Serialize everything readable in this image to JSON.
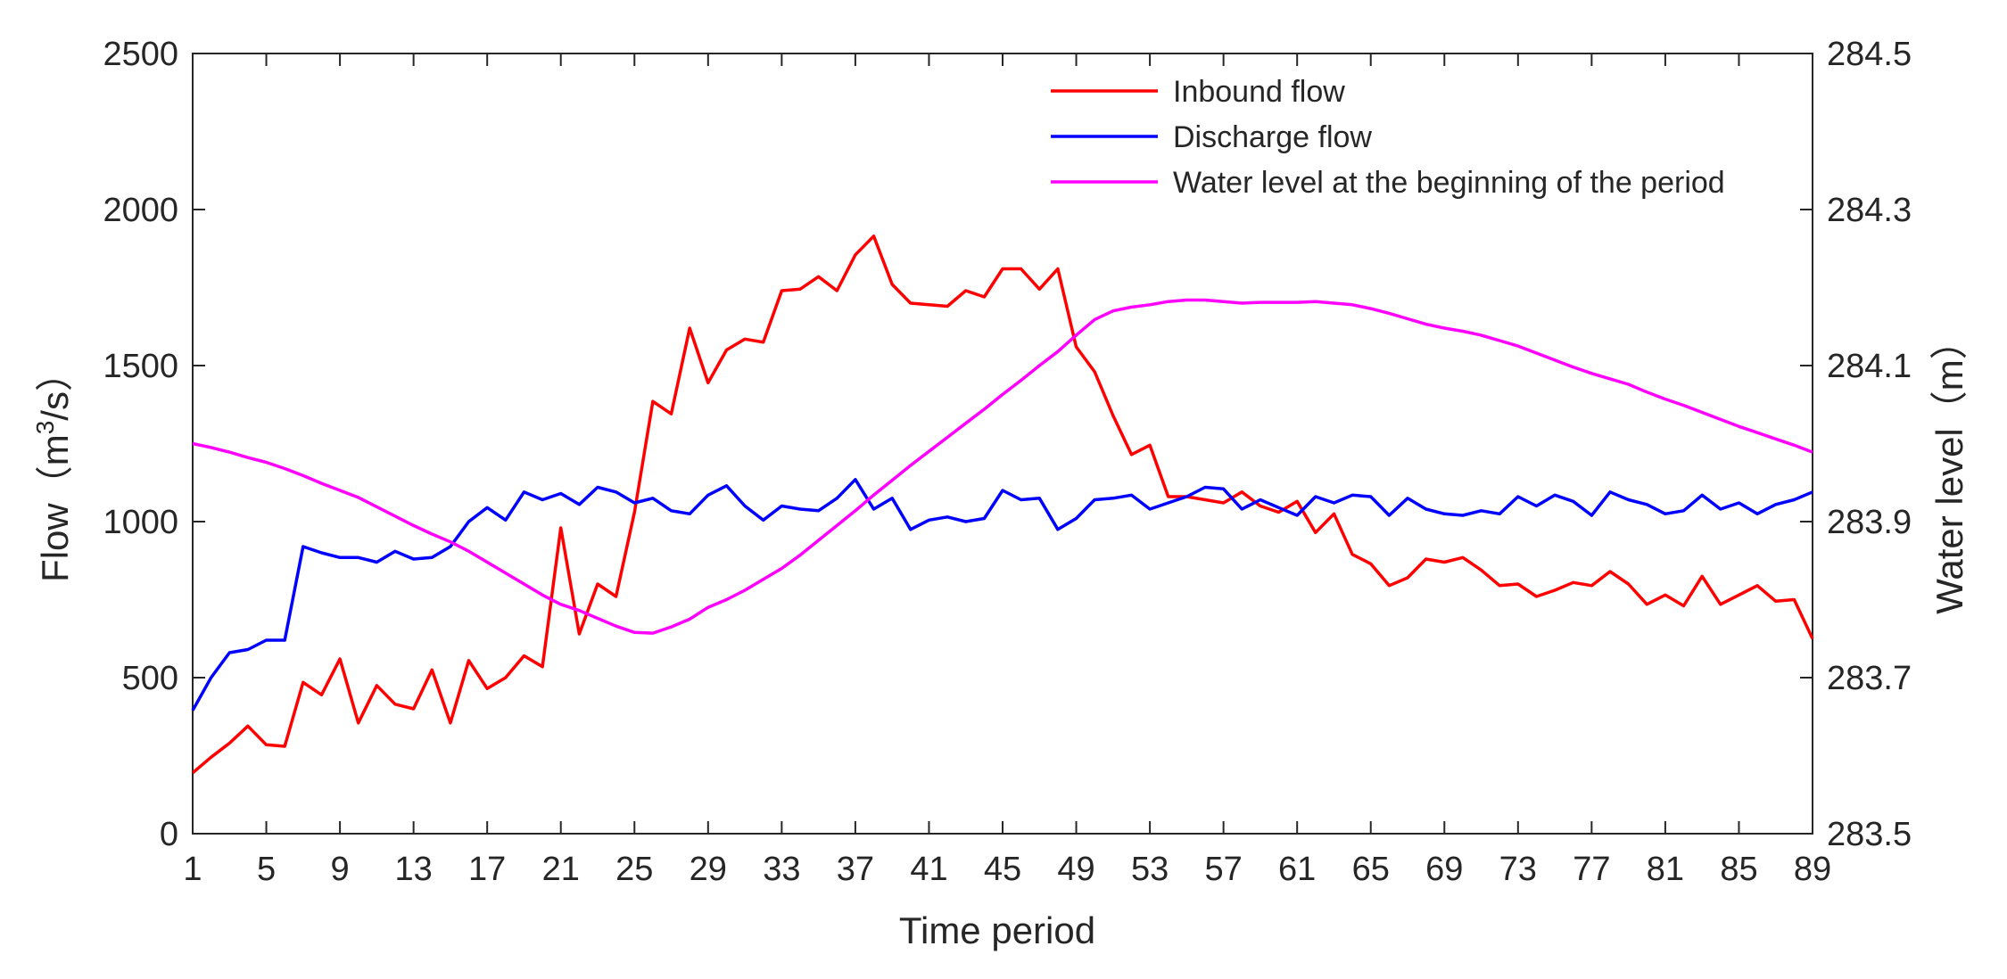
{
  "chart_data": {
    "type": "line",
    "title": "",
    "xlabel": "Time period",
    "ylabel_left": "Flow（m3/s）",
    "ylabel_left_parts": {
      "prefix": "Flow（m",
      "sup": "3",
      "suffix": "/s）"
    },
    "ylabel_right": "Water level（m）",
    "xlim": [
      1,
      89
    ],
    "ylim_left": [
      0,
      2500
    ],
    "ylim_right": [
      283.5,
      284.5
    ],
    "xticks": [
      1,
      5,
      9,
      13,
      17,
      21,
      25,
      29,
      33,
      37,
      41,
      45,
      49,
      53,
      57,
      61,
      65,
      69,
      73,
      77,
      81,
      85,
      89
    ],
    "xtick_labels": [
      "1",
      "5",
      "9",
      "13",
      "17",
      "21",
      "25",
      "29",
      "33",
      "37",
      "41",
      "45",
      "49",
      "53",
      "57",
      "61",
      "65",
      "69",
      "73",
      "77",
      "81",
      "85",
      "89"
    ],
    "yticks_left": [
      0,
      500,
      1000,
      1500,
      2000,
      2500
    ],
    "ytick_labels_left": [
      "0",
      "500",
      "1000",
      "1500",
      "2000",
      "2500"
    ],
    "yticks_right": [
      283.5,
      283.7,
      283.9,
      284.1,
      284.3,
      284.5
    ],
    "ytick_labels_right": [
      "283.5",
      "283.7",
      "283.9",
      "284.1",
      "284.3",
      "284.5"
    ],
    "grid": false,
    "legend_position": "top-right",
    "series": [
      {
        "name": "Inbound flow",
        "axis": "left",
        "color": "#ff0000",
        "values": [
          195,
          245,
          290,
          345,
          285,
          280,
          485,
          445,
          560,
          355,
          475,
          415,
          400,
          525,
          355,
          555,
          465,
          500,
          570,
          535,
          980,
          640,
          800,
          760,
          1030,
          1385,
          1345,
          1620,
          1445,
          1550,
          1585,
          1575,
          1740,
          1745,
          1785,
          1740,
          1855,
          1915,
          1760,
          1700,
          1695,
          1690,
          1740,
          1720,
          1810,
          1810,
          1745,
          1810,
          1560,
          1480,
          1340,
          1215,
          1245,
          1080,
          1080,
          1070,
          1060,
          1095,
          1050,
          1030,
          1065,
          965,
          1025,
          895,
          865,
          795,
          820,
          880,
          870,
          885,
          845,
          795,
          800,
          760,
          780,
          805,
          795,
          840,
          800,
          735,
          765,
          730,
          825,
          735,
          765,
          795,
          745,
          750,
          625
        ]
      },
      {
        "name": "Discharge flow",
        "axis": "left",
        "color": "#0000ff",
        "values": [
          395,
          500,
          580,
          590,
          620,
          620,
          920,
          900,
          885,
          885,
          870,
          905,
          880,
          885,
          920,
          1000,
          1045,
          1005,
          1095,
          1070,
          1090,
          1055,
          1110,
          1095,
          1060,
          1075,
          1035,
          1025,
          1085,
          1115,
          1050,
          1005,
          1050,
          1040,
          1035,
          1075,
          1135,
          1040,
          1075,
          975,
          1005,
          1015,
          1000,
          1010,
          1100,
          1070,
          1075,
          975,
          1010,
          1070,
          1075,
          1085,
          1040,
          1060,
          1080,
          1110,
          1105,
          1040,
          1070,
          1045,
          1020,
          1080,
          1060,
          1085,
          1080,
          1020,
          1075,
          1040,
          1025,
          1020,
          1035,
          1025,
          1080,
          1050,
          1085,
          1065,
          1020,
          1095,
          1070,
          1055,
          1025,
          1035,
          1085,
          1040,
          1060,
          1025,
          1055,
          1070,
          1095
        ]
      },
      {
        "name": "Water level at the beginning of the period",
        "axis": "right",
        "color": "#ff00ff",
        "values": [
          284.0,
          283.995,
          283.989,
          283.982,
          283.976,
          283.968,
          283.959,
          283.949,
          283.94,
          283.931,
          283.919,
          283.907,
          283.895,
          283.884,
          283.874,
          283.862,
          283.848,
          283.834,
          283.82,
          283.806,
          283.794,
          283.786,
          283.776,
          283.766,
          283.758,
          283.757,
          283.765,
          283.775,
          283.79,
          283.8,
          283.812,
          283.826,
          283.84,
          283.857,
          283.876,
          283.895,
          283.914,
          283.934,
          283.953,
          283.972,
          283.99,
          284.008,
          284.026,
          284.044,
          284.063,
          284.081,
          284.1,
          284.118,
          284.139,
          284.159,
          284.17,
          284.175,
          284.178,
          284.182,
          284.184,
          284.184,
          284.182,
          284.18,
          284.181,
          284.181,
          284.181,
          284.182,
          284.18,
          284.178,
          284.173,
          284.167,
          284.16,
          284.153,
          284.148,
          284.144,
          284.139,
          284.132,
          284.125,
          284.116,
          284.107,
          284.098,
          284.09,
          284.083,
          284.076,
          284.066,
          284.057,
          284.049,
          284.04,
          284.031,
          284.022,
          284.014,
          284.006,
          283.998,
          283.989
        ]
      }
    ]
  }
}
